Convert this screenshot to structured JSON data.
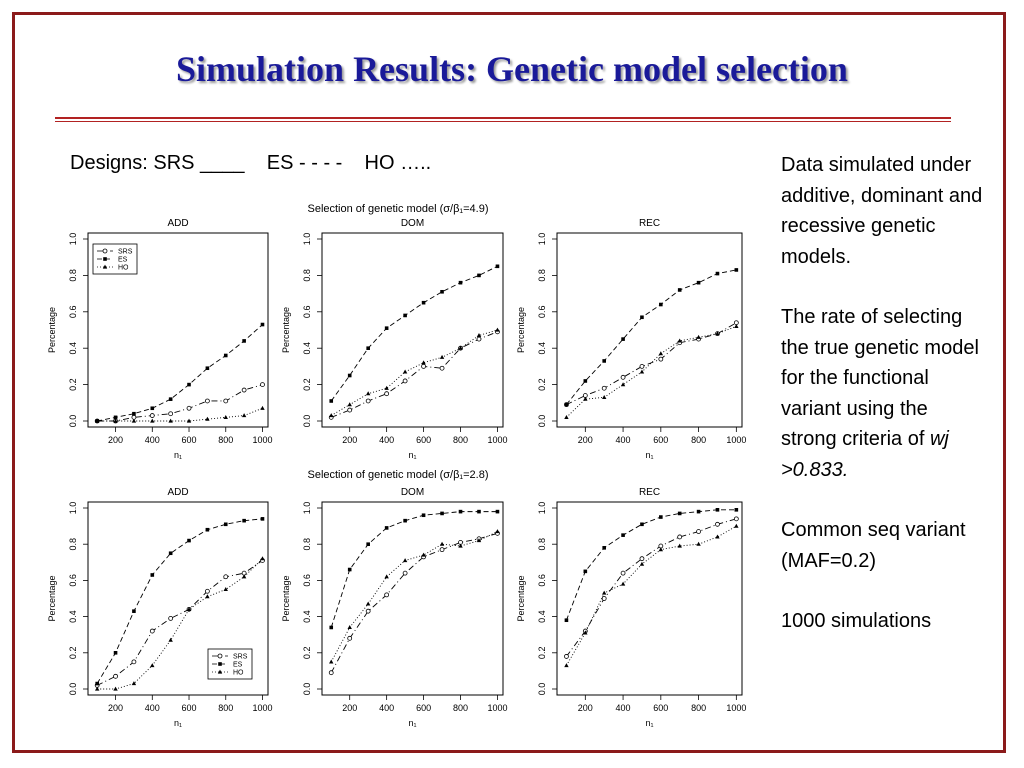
{
  "slide": {
    "title": "Simulation Results:  Genetic model selection",
    "designs_line": "Designs: SRS ____    ES - - - -    HO …..",
    "sidebar": {
      "p1": "Data simulated under additive, dominant and recessive genetic models.",
      "p2_text": "The rate of selecting the true genetic model for the functional variant using the strong criteria of ",
      "p2_emph": "wj >0.833.",
      "p3": "Common seq variant (MAF=0.2)",
      "p4": "1000 simulations"
    }
  },
  "chart_data": [
    {
      "type": "line",
      "group_title": "Selection of genetic model (σ/β₁=4.9)",
      "title": "ADD",
      "xlabel": "n₁",
      "ylabel": "Percentage",
      "x": [
        100,
        200,
        300,
        400,
        500,
        600,
        700,
        800,
        900,
        1000
      ],
      "xlim": [
        50,
        1030
      ],
      "ylim": [
        0,
        1
      ],
      "xticks": [
        200,
        400,
        600,
        800,
        1000
      ],
      "yticks": [
        0.0,
        0.2,
        0.4,
        0.6,
        0.8,
        1.0
      ],
      "legend": "top-left",
      "series": [
        {
          "name": "SRS",
          "values": [
            0.0,
            0.0,
            0.02,
            0.03,
            0.04,
            0.07,
            0.11,
            0.11,
            0.17,
            0.2
          ]
        },
        {
          "name": "ES",
          "values": [
            0.0,
            0.02,
            0.04,
            0.07,
            0.12,
            0.2,
            0.29,
            0.36,
            0.44,
            0.53
          ]
        },
        {
          "name": "HO",
          "values": [
            0.0,
            0.0,
            0.0,
            0.0,
            0.0,
            0.0,
            0.01,
            0.02,
            0.03,
            0.07
          ]
        }
      ]
    },
    {
      "type": "line",
      "title": "DOM",
      "xlabel": "n₁",
      "ylabel": "Percentage",
      "x": [
        100,
        200,
        300,
        400,
        500,
        600,
        700,
        800,
        900,
        1000
      ],
      "xlim": [
        50,
        1030
      ],
      "ylim": [
        0,
        1
      ],
      "xticks": [
        200,
        400,
        600,
        800,
        1000
      ],
      "yticks": [
        0.0,
        0.2,
        0.4,
        0.6,
        0.8,
        1.0
      ],
      "series": [
        {
          "name": "SRS",
          "values": [
            0.02,
            0.06,
            0.11,
            0.15,
            0.22,
            0.3,
            0.29,
            0.4,
            0.45,
            0.49
          ]
        },
        {
          "name": "ES",
          "values": [
            0.11,
            0.25,
            0.4,
            0.51,
            0.58,
            0.65,
            0.71,
            0.76,
            0.8,
            0.85
          ]
        },
        {
          "name": "HO",
          "values": [
            0.03,
            0.09,
            0.15,
            0.18,
            0.27,
            0.32,
            0.35,
            0.4,
            0.47,
            0.5
          ]
        }
      ]
    },
    {
      "type": "line",
      "title": "REC",
      "xlabel": "n₁",
      "ylabel": "Percentage",
      "x": [
        100,
        200,
        300,
        400,
        500,
        600,
        700,
        800,
        900,
        1000
      ],
      "xlim": [
        50,
        1030
      ],
      "ylim": [
        0,
        1
      ],
      "xticks": [
        200,
        400,
        600,
        800,
        1000
      ],
      "yticks": [
        0.0,
        0.2,
        0.4,
        0.6,
        0.8,
        1.0
      ],
      "series": [
        {
          "name": "SRS",
          "values": [
            0.09,
            0.14,
            0.18,
            0.24,
            0.3,
            0.34,
            0.43,
            0.45,
            0.48,
            0.54
          ]
        },
        {
          "name": "ES",
          "values": [
            0.09,
            0.22,
            0.33,
            0.45,
            0.57,
            0.64,
            0.72,
            0.76,
            0.81,
            0.83
          ]
        },
        {
          "name": "HO",
          "values": [
            0.02,
            0.12,
            0.13,
            0.2,
            0.27,
            0.37,
            0.44,
            0.46,
            0.48,
            0.52
          ]
        }
      ]
    },
    {
      "type": "line",
      "group_title": "Selection of genetic model (σ/β₁=2.8)",
      "title": "ADD",
      "xlabel": "n₁",
      "ylabel": "Percentage",
      "x": [
        100,
        200,
        300,
        400,
        500,
        600,
        700,
        800,
        900,
        1000
      ],
      "xlim": [
        50,
        1030
      ],
      "ylim": [
        0,
        1
      ],
      "xticks": [
        200,
        400,
        600,
        800,
        1000
      ],
      "yticks": [
        0.0,
        0.2,
        0.4,
        0.6,
        0.8,
        1.0
      ],
      "legend": "bottom-right",
      "series": [
        {
          "name": "SRS",
          "values": [
            0.02,
            0.07,
            0.15,
            0.32,
            0.39,
            0.44,
            0.54,
            0.62,
            0.64,
            0.71
          ]
        },
        {
          "name": "ES",
          "values": [
            0.03,
            0.2,
            0.43,
            0.63,
            0.75,
            0.82,
            0.88,
            0.91,
            0.93,
            0.94
          ]
        },
        {
          "name": "HO",
          "values": [
            0.0,
            0.0,
            0.03,
            0.13,
            0.27,
            0.44,
            0.51,
            0.55,
            0.62,
            0.72
          ]
        }
      ]
    },
    {
      "type": "line",
      "title": "DOM",
      "xlabel": "n₁",
      "ylabel": "Percentage",
      "x": [
        100,
        200,
        300,
        400,
        500,
        600,
        700,
        800,
        900,
        1000
      ],
      "xlim": [
        50,
        1030
      ],
      "ylim": [
        0,
        1
      ],
      "xticks": [
        200,
        400,
        600,
        800,
        1000
      ],
      "yticks": [
        0.0,
        0.2,
        0.4,
        0.6,
        0.8,
        1.0
      ],
      "series": [
        {
          "name": "SRS",
          "values": [
            0.09,
            0.28,
            0.43,
            0.52,
            0.64,
            0.73,
            0.77,
            0.81,
            0.83,
            0.86
          ]
        },
        {
          "name": "ES",
          "values": [
            0.34,
            0.66,
            0.8,
            0.89,
            0.93,
            0.96,
            0.97,
            0.98,
            0.98,
            0.98
          ]
        },
        {
          "name": "HO",
          "values": [
            0.15,
            0.34,
            0.47,
            0.62,
            0.71,
            0.74,
            0.8,
            0.79,
            0.82,
            0.87
          ]
        }
      ]
    },
    {
      "type": "line",
      "title": "REC",
      "xlabel": "n₁",
      "ylabel": "Percentage",
      "x": [
        100,
        200,
        300,
        400,
        500,
        600,
        700,
        800,
        900,
        1000
      ],
      "xlim": [
        50,
        1030
      ],
      "ylim": [
        0,
        1
      ],
      "xticks": [
        200,
        400,
        600,
        800,
        1000
      ],
      "yticks": [
        0.0,
        0.2,
        0.4,
        0.6,
        0.8,
        1.0
      ],
      "series": [
        {
          "name": "SRS",
          "values": [
            0.18,
            0.32,
            0.5,
            0.64,
            0.72,
            0.79,
            0.84,
            0.87,
            0.91,
            0.94
          ]
        },
        {
          "name": "ES",
          "values": [
            0.38,
            0.65,
            0.78,
            0.85,
            0.91,
            0.95,
            0.97,
            0.98,
            0.99,
            0.99
          ]
        },
        {
          "name": "HO",
          "values": [
            0.13,
            0.31,
            0.53,
            0.58,
            0.69,
            0.77,
            0.79,
            0.8,
            0.84,
            0.9
          ]
        }
      ]
    }
  ],
  "colors": {
    "frame": "#8b1a1a",
    "title": "#1a1a99",
    "rule": "#b22222",
    "plot_ink": "#000000"
  }
}
